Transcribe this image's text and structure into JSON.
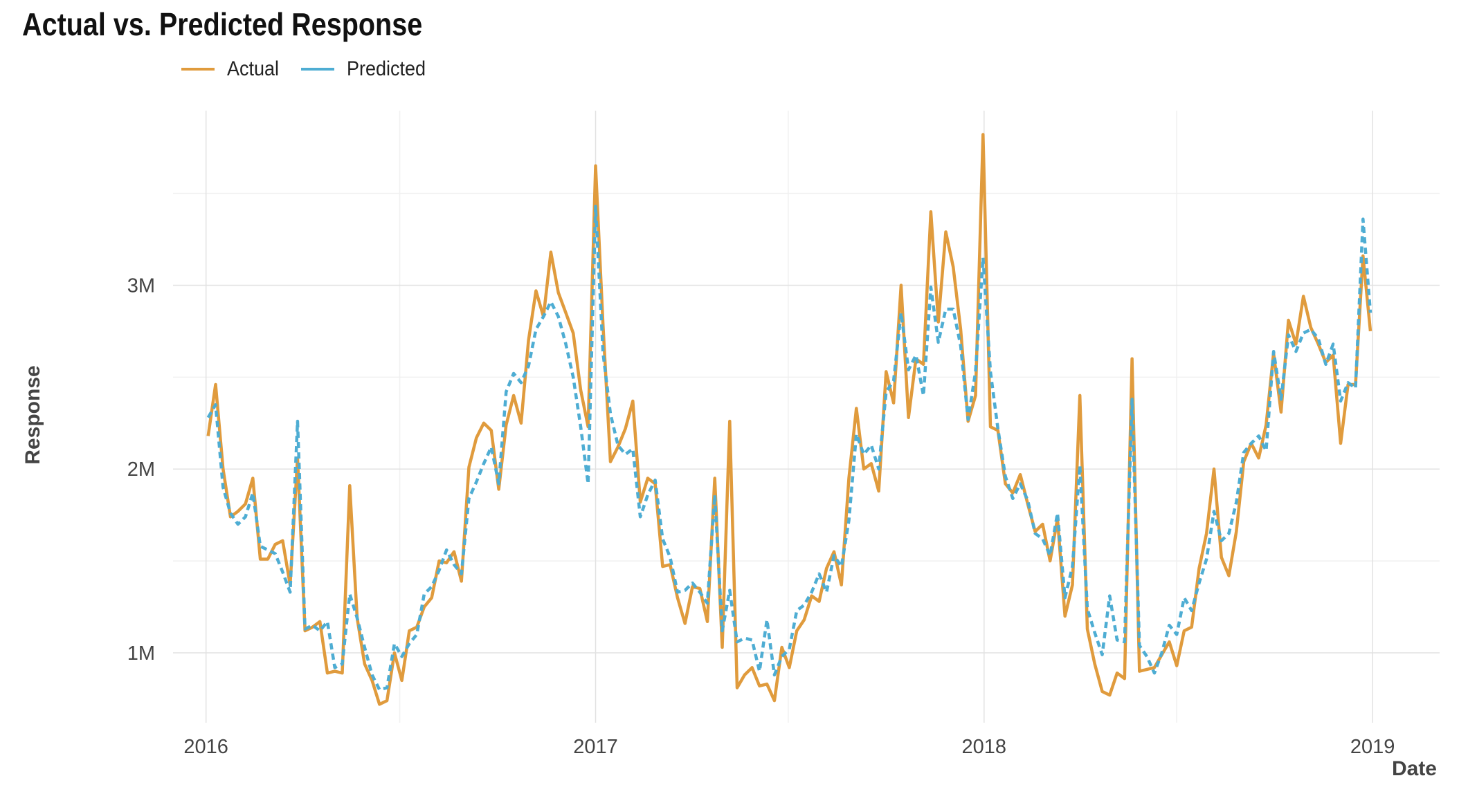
{
  "chart_data": {
    "type": "line",
    "title": "Actual vs. Predicted Response",
    "xlabel": "Date",
    "ylabel": "Response",
    "legend_position": "top-left",
    "grid": true,
    "x_range": [
      "2015-12-01",
      "2019-03-05"
    ],
    "y_range": [
      620000,
      3950000
    ],
    "x_ticks": [
      {
        "label": "2016",
        "date": "2016-01-01"
      },
      {
        "label": "2017",
        "date": "2017-01-01"
      },
      {
        "label": "2018",
        "date": "2018-01-01"
      },
      {
        "label": "2019",
        "date": "2019-01-01"
      }
    ],
    "x_minor_ticks": [
      "2016-07-01",
      "2017-07-01",
      "2018-07-01"
    ],
    "y_ticks": [
      {
        "label": "1M",
        "value": 1000000
      },
      {
        "label": "2M",
        "value": 2000000
      },
      {
        "label": "3M",
        "value": 3000000
      }
    ],
    "y_minor_ticks": [
      1500000,
      2500000,
      3500000
    ],
    "x": [
      "2016-01-03",
      "2016-01-10",
      "2016-01-17",
      "2016-01-24",
      "2016-01-31",
      "2016-02-07",
      "2016-02-14",
      "2016-02-21",
      "2016-02-28",
      "2016-03-06",
      "2016-03-13",
      "2016-03-20",
      "2016-03-27",
      "2016-04-03",
      "2016-04-10",
      "2016-04-17",
      "2016-04-24",
      "2016-05-01",
      "2016-05-08",
      "2016-05-15",
      "2016-05-22",
      "2016-05-29",
      "2016-06-05",
      "2016-06-12",
      "2016-06-19",
      "2016-06-26",
      "2016-07-03",
      "2016-07-10",
      "2016-07-17",
      "2016-07-24",
      "2016-07-31",
      "2016-08-07",
      "2016-08-14",
      "2016-08-21",
      "2016-08-28",
      "2016-09-04",
      "2016-09-11",
      "2016-09-18",
      "2016-09-25",
      "2016-10-02",
      "2016-10-09",
      "2016-10-16",
      "2016-10-23",
      "2016-10-30",
      "2016-11-06",
      "2016-11-13",
      "2016-11-20",
      "2016-11-27",
      "2016-12-04",
      "2016-12-11",
      "2016-12-18",
      "2016-12-25",
      "2017-01-01",
      "2017-01-08",
      "2017-01-15",
      "2017-01-22",
      "2017-01-29",
      "2017-02-05",
      "2017-02-12",
      "2017-02-19",
      "2017-02-26",
      "2017-03-05",
      "2017-03-12",
      "2017-03-19",
      "2017-03-26",
      "2017-04-02",
      "2017-04-09",
      "2017-04-16",
      "2017-04-23",
      "2017-04-30",
      "2017-05-07",
      "2017-05-14",
      "2017-05-21",
      "2017-05-28",
      "2017-06-04",
      "2017-06-11",
      "2017-06-18",
      "2017-06-25",
      "2017-07-02",
      "2017-07-09",
      "2017-07-16",
      "2017-07-23",
      "2017-07-30",
      "2017-08-06",
      "2017-08-13",
      "2017-08-20",
      "2017-08-27",
      "2017-09-03",
      "2017-09-10",
      "2017-09-17",
      "2017-09-24",
      "2017-10-01",
      "2017-10-08",
      "2017-10-15",
      "2017-10-22",
      "2017-10-29",
      "2017-11-05",
      "2017-11-12",
      "2017-11-19",
      "2017-11-26",
      "2017-12-03",
      "2017-12-10",
      "2017-12-17",
      "2017-12-24",
      "2017-12-31",
      "2018-01-07",
      "2018-01-14",
      "2018-01-21",
      "2018-01-28",
      "2018-02-04",
      "2018-02-11",
      "2018-02-18",
      "2018-02-25",
      "2018-03-04",
      "2018-03-11",
      "2018-03-18",
      "2018-03-25",
      "2018-04-01",
      "2018-04-08",
      "2018-04-15",
      "2018-04-22",
      "2018-04-29",
      "2018-05-06",
      "2018-05-13",
      "2018-05-20",
      "2018-05-27",
      "2018-06-03",
      "2018-06-10",
      "2018-06-17",
      "2018-06-24",
      "2018-07-01",
      "2018-07-08",
      "2018-07-15",
      "2018-07-22",
      "2018-07-29",
      "2018-08-05",
      "2018-08-12",
      "2018-08-19",
      "2018-08-26",
      "2018-09-02",
      "2018-09-09",
      "2018-09-16",
      "2018-09-23",
      "2018-09-30",
      "2018-10-07",
      "2018-10-14",
      "2018-10-21",
      "2018-10-28",
      "2018-11-04",
      "2018-11-11",
      "2018-11-18",
      "2018-11-25",
      "2018-12-02",
      "2018-12-09",
      "2018-12-16",
      "2018-12-23",
      "2018-12-30"
    ],
    "series": [
      {
        "name": "Actual",
        "color": "#E09B3D",
        "dash": "solid",
        "values": [
          2180000,
          2460000,
          2000000,
          1740000,
          1770000,
          1810000,
          1950000,
          1510000,
          1510000,
          1590000,
          1610000,
          1370000,
          2060000,
          1120000,
          1140000,
          1170000,
          890000,
          900000,
          890000,
          1910000,
          1190000,
          940000,
          850000,
          720000,
          740000,
          1000000,
          850000,
          1120000,
          1140000,
          1250000,
          1300000,
          1500000,
          1490000,
          1550000,
          1390000,
          2010000,
          2170000,
          2250000,
          2210000,
          1890000,
          2240000,
          2400000,
          2250000,
          2700000,
          2970000,
          2830000,
          3180000,
          2960000,
          2850000,
          2740000,
          2430000,
          2230000,
          3650000,
          2780000,
          2040000,
          2120000,
          2220000,
          2370000,
          1820000,
          1950000,
          1920000,
          1470000,
          1480000,
          1300000,
          1160000,
          1360000,
          1350000,
          1170000,
          1950000,
          1030000,
          2260000,
          810000,
          880000,
          920000,
          820000,
          830000,
          740000,
          1030000,
          920000,
          1120000,
          1180000,
          1310000,
          1280000,
          1460000,
          1550000,
          1370000,
          1950000,
          2330000,
          2000000,
          2030000,
          1880000,
          2530000,
          2360000,
          3000000,
          2280000,
          2600000,
          2570000,
          3400000,
          2800000,
          3290000,
          3100000,
          2760000,
          2260000,
          2400000,
          3820000,
          2230000,
          2210000,
          1920000,
          1870000,
          1970000,
          1810000,
          1660000,
          1700000,
          1500000,
          1730000,
          1200000,
          1370000,
          2400000,
          1130000,
          940000,
          790000,
          770000,
          890000,
          860000,
          2600000,
          900000,
          910000,
          920000,
          990000,
          1060000,
          930000,
          1120000,
          1140000,
          1460000,
          1650000,
          2000000,
          1520000,
          1420000,
          1660000,
          2040000,
          2140000,
          2060000,
          2240000,
          2630000,
          2310000,
          2810000,
          2680000,
          2940000,
          2770000,
          2680000,
          2580000,
          2620000,
          2140000,
          2460000,
          2460000,
          3160000,
          2750000
        ]
      },
      {
        "name": "Predicted",
        "color": "#4EADD3",
        "dash": "dashed",
        "values": [
          2280000,
          2350000,
          1900000,
          1760000,
          1700000,
          1740000,
          1870000,
          1580000,
          1560000,
          1540000,
          1440000,
          1330000,
          2260000,
          1130000,
          1150000,
          1120000,
          1170000,
          920000,
          940000,
          1320000,
          1190000,
          1030000,
          880000,
          800000,
          810000,
          1050000,
          980000,
          1050000,
          1100000,
          1320000,
          1360000,
          1450000,
          1560000,
          1480000,
          1430000,
          1840000,
          1930000,
          2030000,
          2120000,
          1920000,
          2420000,
          2520000,
          2470000,
          2560000,
          2760000,
          2830000,
          2910000,
          2830000,
          2680000,
          2500000,
          2230000,
          1920000,
          3430000,
          2630000,
          2300000,
          2130000,
          2080000,
          2110000,
          1740000,
          1860000,
          1940000,
          1620000,
          1520000,
          1330000,
          1340000,
          1380000,
          1330000,
          1270000,
          1860000,
          1120000,
          1340000,
          1060000,
          1080000,
          1070000,
          900000,
          1180000,
          880000,
          980000,
          1020000,
          1230000,
          1260000,
          1330000,
          1430000,
          1330000,
          1530000,
          1470000,
          1720000,
          2190000,
          2080000,
          2130000,
          2000000,
          2420000,
          2480000,
          2850000,
          2540000,
          2620000,
          2400000,
          2990000,
          2690000,
          2870000,
          2870000,
          2670000,
          2270000,
          2530000,
          3150000,
          2530000,
          2220000,
          1960000,
          1840000,
          1920000,
          1830000,
          1650000,
          1620000,
          1530000,
          1760000,
          1300000,
          1470000,
          2020000,
          1240000,
          1110000,
          990000,
          1310000,
          1070000,
          1060000,
          2380000,
          1040000,
          980000,
          890000,
          1000000,
          1150000,
          1100000,
          1300000,
          1230000,
          1380000,
          1510000,
          1770000,
          1610000,
          1650000,
          1820000,
          2090000,
          2140000,
          2180000,
          2100000,
          2640000,
          2380000,
          2730000,
          2640000,
          2740000,
          2760000,
          2710000,
          2570000,
          2680000,
          2370000,
          2470000,
          2440000,
          3360000,
          2850000
        ]
      }
    ]
  }
}
